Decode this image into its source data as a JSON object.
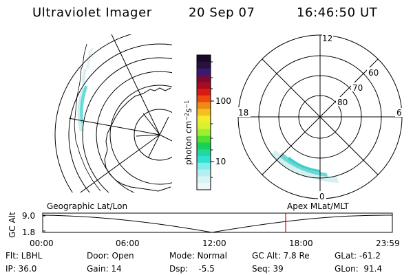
{
  "header": {
    "instrument": "Ultraviolet Imager",
    "date": "20 Sep 07",
    "time": "16:46:50 UT"
  },
  "colorbar": {
    "label": "photon cm^-2 s^-1",
    "ticks": [
      "100",
      "10"
    ],
    "colors": [
      "#1a0a2a",
      "#2a1040",
      "#3a1a70",
      "#7a0a35",
      "#a80a20",
      "#d81a10",
      "#ee4a10",
      "#f08a10",
      "#f2c020",
      "#f4ec2a",
      "#d8f030",
      "#9cf030",
      "#50e030",
      "#18d058",
      "#20d8a0",
      "#30e0d0",
      "#80ecec",
      "#b4f0f0",
      "#d8f4f4",
      "#eef8f8"
    ]
  },
  "polar_plot": {
    "clock_labels": [
      "12",
      "18",
      "6",
      "0"
    ],
    "lat_labels": [
      "60",
      "70",
      "80"
    ]
  },
  "timeline": {
    "ylabel": "GC Alt",
    "ytick_top": "9.0",
    "ytick_bottom": "1.8",
    "left_label": "Geographic Lat/Lon",
    "right_label": "Apex MLat/MLT",
    "time_ticks": [
      "00:00",
      "06:00",
      "12:00",
      "18:00",
      "23:59"
    ],
    "marker_color": "#dd0000"
  },
  "info": {
    "row1": [
      "Flt: LBHL",
      "Door: Open",
      "Mode: Normal",
      "GC Alt: 7.8 Re",
      "GLat: -61.2"
    ],
    "row2": [
      "IP: 36.0",
      "Gain: 14",
      "Dsp:    -5.5",
      "Seq: 39",
      "GLon:  91.4"
    ]
  }
}
